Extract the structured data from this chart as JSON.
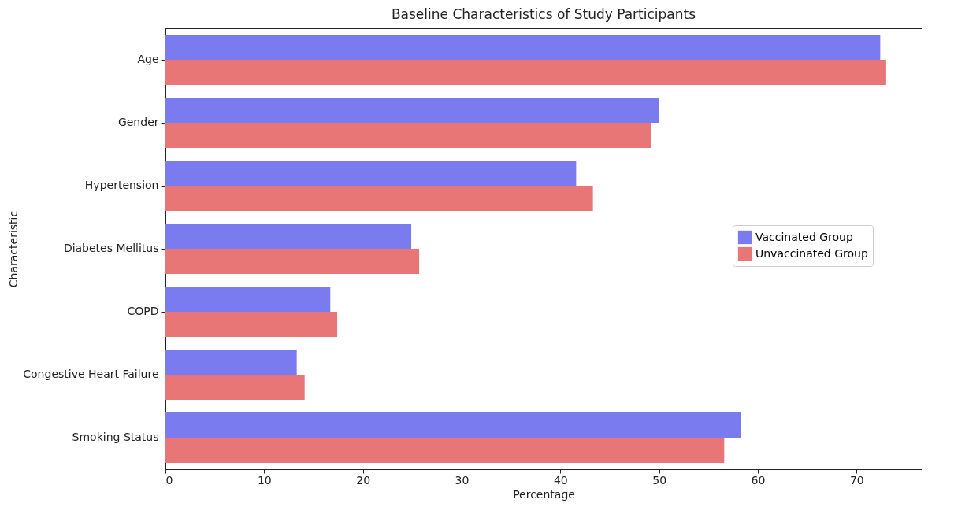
{
  "chart_data": {
    "type": "bar",
    "orientation": "horizontal",
    "title": "Baseline Characteristics of Study Participants",
    "xlabel": "Percentage",
    "ylabel": "Characteristic",
    "categories": [
      "Age",
      "Gender",
      "Hypertension",
      "Diabetes Mellitus",
      "COPD",
      "Congestive Heart Failure",
      "Smoking Status"
    ],
    "series": [
      {
        "name": "Vaccinated Group",
        "color": "#7b7bf0",
        "values": [
          72.4,
          50.0,
          41.6,
          24.9,
          16.7,
          13.3,
          58.3
        ]
      },
      {
        "name": "Unvaccinated Group",
        "color": "#e87676",
        "values": [
          73.0,
          49.2,
          43.3,
          25.7,
          17.4,
          14.1,
          56.6
        ]
      }
    ],
    "xlim": [
      0,
      76.6
    ],
    "xticks": [
      0,
      10,
      20,
      30,
      40,
      50,
      60,
      70
    ],
    "legend": "right",
    "grid": false
  }
}
